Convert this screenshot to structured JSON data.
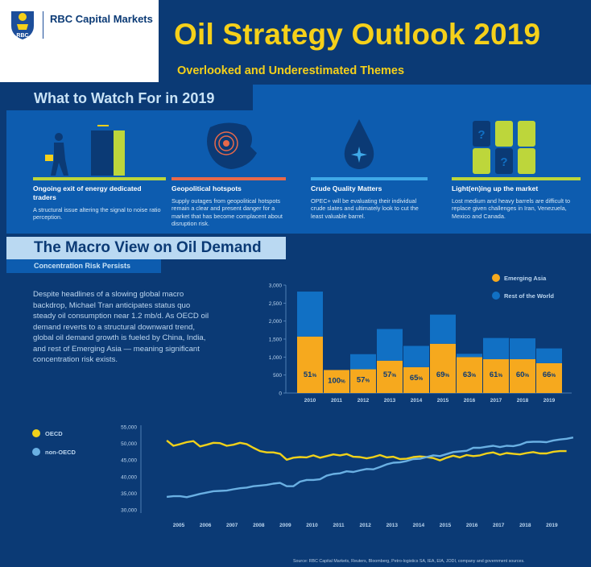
{
  "header": {
    "logo_emblem_text": "RBC",
    "brand": "RBC Capital Markets",
    "title": "Oil Strategy Outlook 2019",
    "subtitle": "Overlooked and Underestimated Themes"
  },
  "watch": {
    "heading": "What to Watch For in 2019",
    "themes": [
      {
        "title": "Ongoing exit of energy dedicated traders",
        "desc": "A structural issue altering the signal to noise ratio perception.",
        "accent": "#bdd63b",
        "icon": "person-exit-door-icon"
      },
      {
        "title": "Geopolitical hotspots",
        "desc": "Supply outages from geopolitical hotspots remain a clear and present danger for a market that has become complacent about disruption risk.",
        "accent": "#e8694a",
        "icon": "globe-hotspot-icon"
      },
      {
        "title": "Crude Quality Matters",
        "desc": "OPEC+ will be evaluating their individual crude slates and ultimately look to cut the least valuable barrel.",
        "accent": "#3fa9e8",
        "icon": "oil-drop-icon"
      },
      {
        "title": "Light(en)ing up the market",
        "desc": "Lost medium and heavy barrels are difficult to replace given challenges in Iran, Venezuela, Mexico and Canada.",
        "accent": "#bdd63b",
        "icon": "barrels-question-icon"
      }
    ]
  },
  "macro": {
    "heading": "The Macro View on Oil Demand",
    "subheading": "Concentration Risk Persists",
    "body": "Despite headlines of a slowing global macro backdrop, Michael Tran anticipates status quo steady oil consumption near 1.2 mb/d. As OECD oil demand reverts to a structural downward trend, global oil demand growth is fueled by China, India, and rest of Emerging Asia — meaning significant concentration risk exists."
  },
  "colors": {
    "emerging_asia": "#f6a91e",
    "rest_of_world": "#1170c4",
    "oecd": "#f0d11a",
    "non_oecd": "#6ab0e3",
    "background": "#0b3a75"
  },
  "chart_data": [
    {
      "type": "bar",
      "stacked": true,
      "categories": [
        "2010",
        "2011",
        "2012",
        "2013",
        "2014",
        "2015",
        "2016",
        "2017",
        "2018",
        "2019"
      ],
      "series": [
        {
          "name": "Emerging Asia",
          "values": [
            1570,
            640,
            660,
            900,
            720,
            1370,
            1000,
            940,
            940,
            830
          ]
        },
        {
          "name": "Rest of the World",
          "values": [
            1250,
            0,
            420,
            880,
            590,
            810,
            90,
            590,
            580,
            410
          ]
        }
      ],
      "data_labels": [
        "51",
        "100",
        "57",
        "57",
        "65",
        "69",
        "63",
        "61",
        "60",
        "66"
      ],
      "data_label_unit": "%",
      "yticks": [
        "0",
        "500",
        "1,000",
        "1,500",
        "2,000",
        "2,500",
        "3,000"
      ],
      "ylim": [
        0,
        3000
      ],
      "legend": [
        "Emerging Asia",
        "Rest of the World"
      ],
      "legend_position": "top-right",
      "grid": false
    },
    {
      "type": "line",
      "x_start": 2004.55,
      "x_step": 0.25,
      "series": [
        {
          "name": "OECD",
          "values": [
            50900,
            49300,
            49800,
            50400,
            50700,
            49100,
            49600,
            50200,
            50100,
            49300,
            49600,
            50200,
            49800,
            48700,
            47700,
            47300,
            47300,
            46900,
            45100,
            45700,
            45900,
            45800,
            46400,
            45700,
            46200,
            46700,
            46400,
            46800,
            46000,
            45900,
            45500,
            45900,
            46500,
            45800,
            46000,
            45300,
            45400,
            45900,
            46100,
            45900,
            45600,
            44900,
            45700,
            46300,
            45800,
            46500,
            46200,
            46400,
            47000,
            47300,
            46600,
            47100,
            46900,
            46700,
            47100,
            47400,
            47000,
            47000,
            47500,
            47700,
            47700
          ]
        },
        {
          "name": "non-OECD",
          "values": [
            33900,
            34100,
            34100,
            33800,
            34300,
            34800,
            35200,
            35600,
            35700,
            35800,
            36200,
            36500,
            36700,
            37100,
            37300,
            37500,
            37900,
            38100,
            37100,
            37100,
            38500,
            39000,
            39000,
            39200,
            40300,
            40800,
            41000,
            41600,
            41400,
            41900,
            42300,
            42200,
            42900,
            43700,
            44200,
            44300,
            44700,
            45300,
            45400,
            45900,
            46400,
            46200,
            46800,
            47400,
            47600,
            47800,
            48700,
            48700,
            49000,
            49300,
            48900,
            49300,
            49200,
            49600,
            50400,
            50500,
            50500,
            50400,
            50900,
            51200,
            51400,
            51800
          ]
        }
      ],
      "xticks": [
        "2005",
        "2006",
        "2007",
        "2008",
        "2009",
        "2010",
        "2011",
        "2012",
        "2013",
        "2014",
        "2015",
        "2016",
        "2017",
        "2018",
        "2019"
      ],
      "yticks": [
        "30,000",
        "35,000",
        "40,000",
        "45,000",
        "50,000",
        "55,000"
      ],
      "ylim": [
        30000,
        55000
      ],
      "xlim": [
        2004.5,
        2019.5
      ],
      "legend": [
        "OECD",
        "non-OECD"
      ],
      "legend_position": "left",
      "grid": false
    }
  ],
  "footer": {
    "source": "Source: RBC Capital Markets, Reuters, Bloomberg, Petro-logistics SA, IEA, EIA, JODI, company and government sources."
  }
}
